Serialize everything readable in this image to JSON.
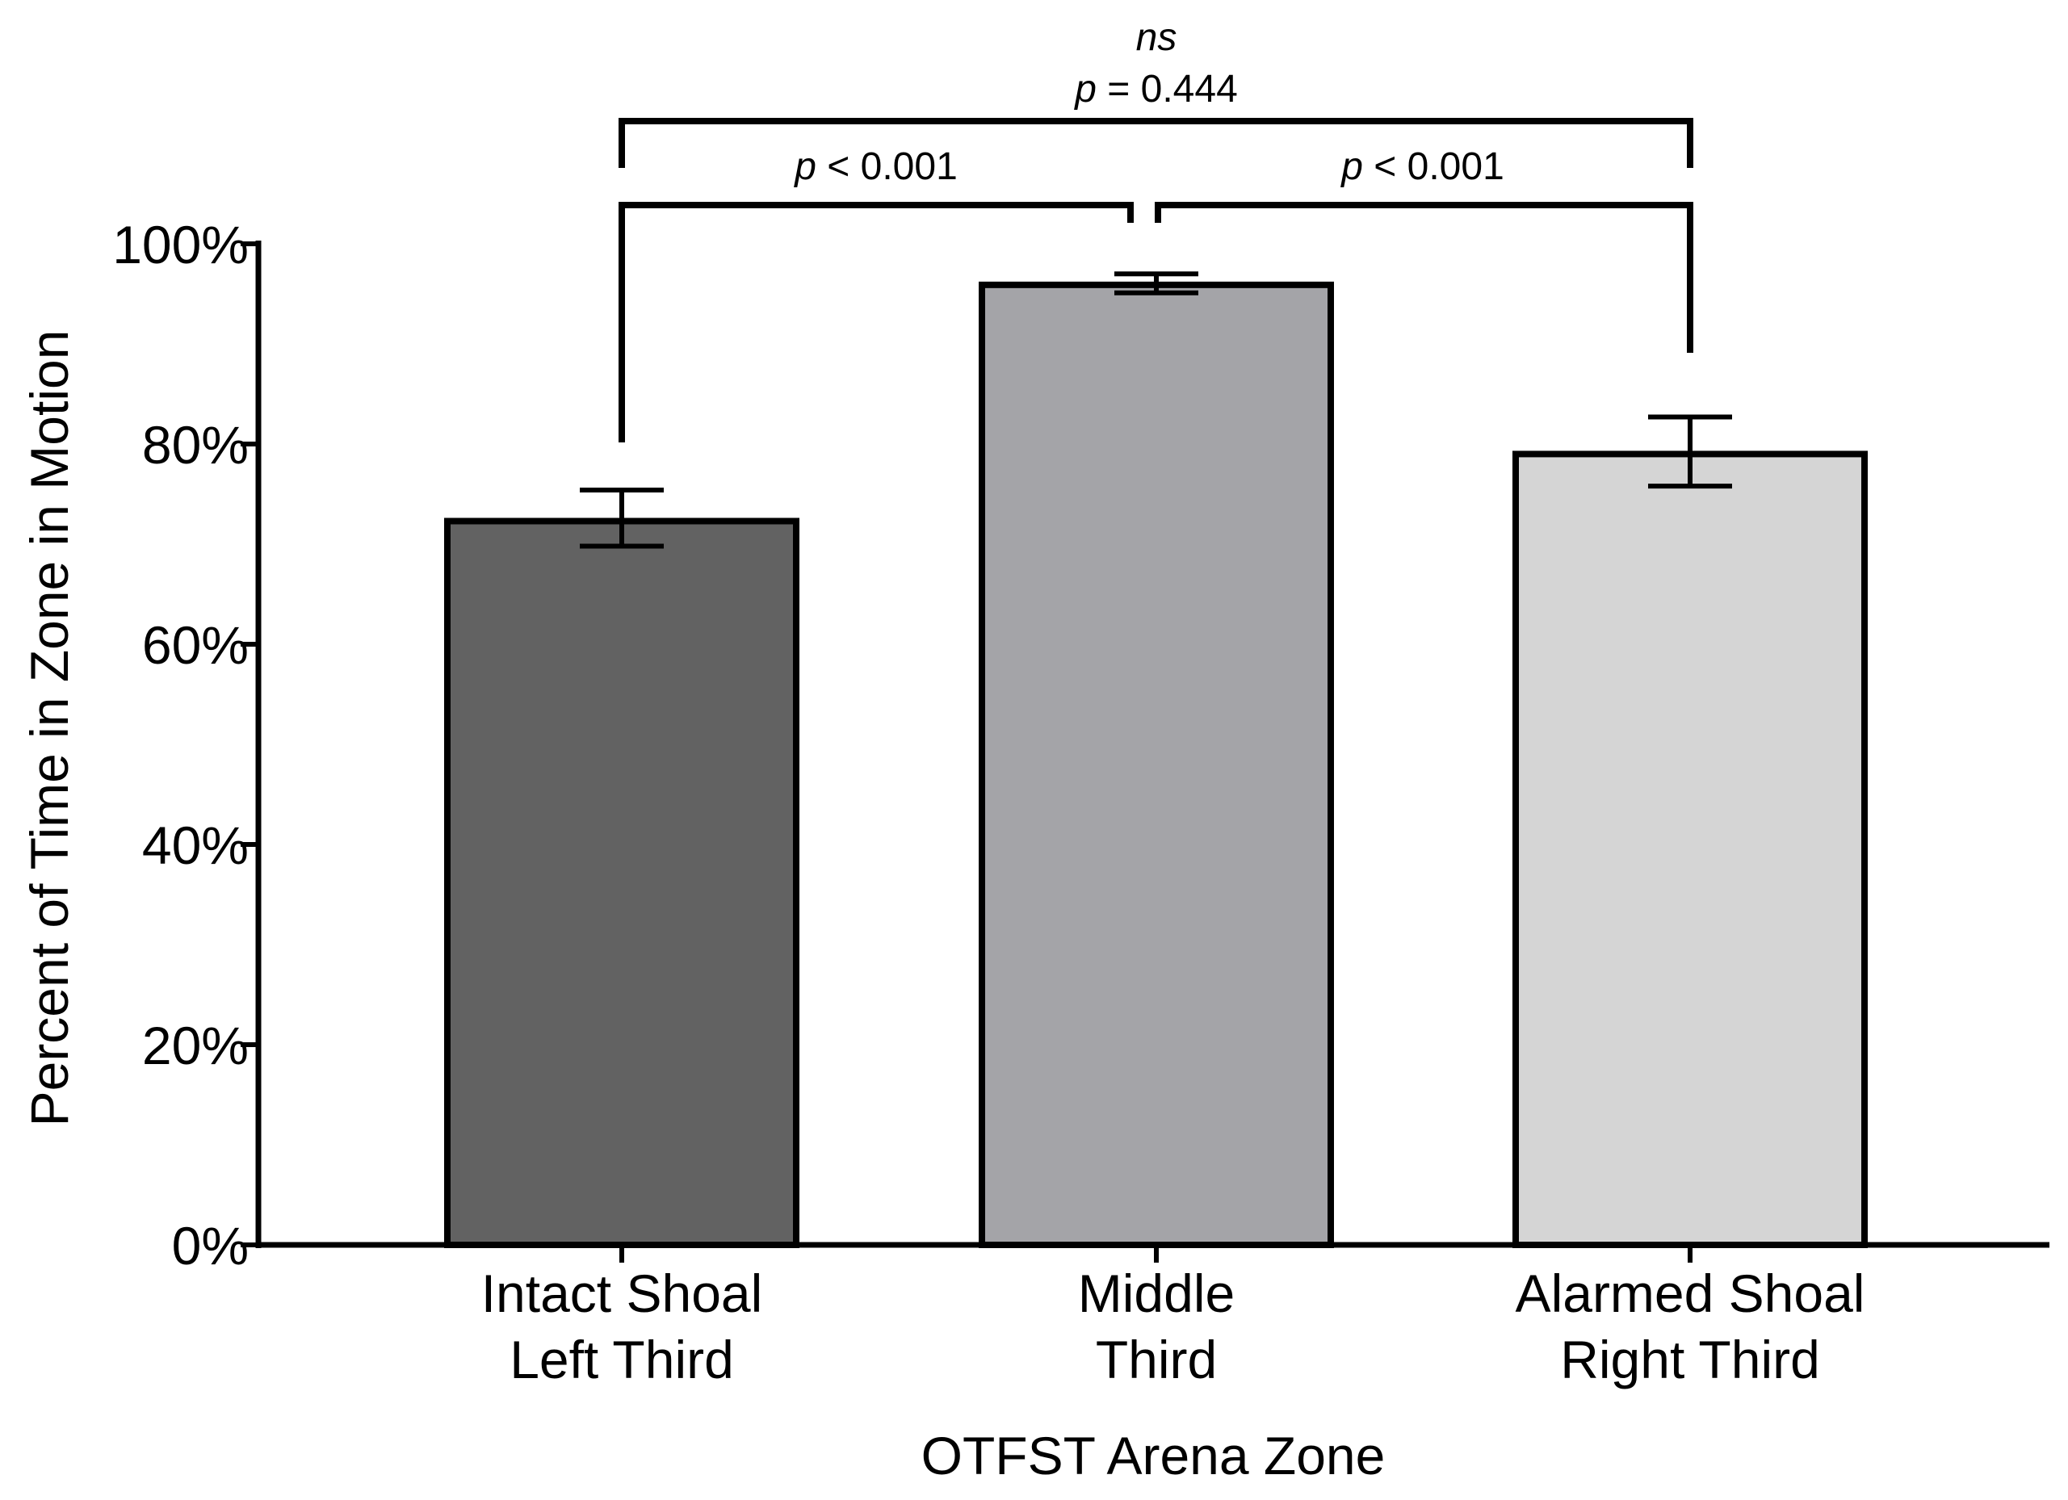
{
  "chart_data": {
    "type": "bar",
    "title": "",
    "xlabel": "OTFST Arena Zone",
    "ylabel": "Percent of Time in Zone in  Motion",
    "ylim": [
      0,
      100
    ],
    "yticks": [
      0,
      20,
      40,
      60,
      80,
      100
    ],
    "ytick_labels": [
      "0%",
      "20%",
      "40%",
      "60%",
      "80%",
      "100%"
    ],
    "categories": [
      [
        "Intact Shoal",
        "Left Third"
      ],
      [
        "Middle",
        "Third"
      ],
      [
        "Alarmed Shoal",
        "Right Third"
      ]
    ],
    "values": [
      72.3,
      95.9,
      79.0
    ],
    "error": [
      [
        69.8,
        75.4
      ],
      [
        95.1,
        97.0
      ],
      [
        75.8,
        82.7
      ]
    ],
    "colors": [
      "#626262",
      "#a4a4a8",
      "#d5d5d5"
    ],
    "significance": [
      {
        "from": 0,
        "to": 1,
        "label": "< 0.001",
        "p": "p",
        "ns": ""
      },
      {
        "from": 1,
        "to": 2,
        "label": "< 0.001",
        "p": "p",
        "ns": ""
      },
      {
        "from": 0,
        "to": 2,
        "label": "= 0.444",
        "p": "p",
        "ns": "ns"
      }
    ]
  }
}
